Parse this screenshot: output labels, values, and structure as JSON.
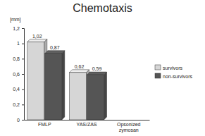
{
  "chart_data": {
    "type": "bar",
    "title": "Chemotaxis",
    "y_label": "[mm]",
    "categories": [
      "FMLP",
      "YAS/ZAS",
      "Opsonized zymosan"
    ],
    "series": [
      {
        "name": "survivors",
        "color": "#d6d6d6",
        "values": [
          1.02,
          0.62,
          null
        ],
        "value_labels": [
          "1,02",
          "0,62",
          null
        ]
      },
      {
        "name": "non-survivors",
        "color": "#555555",
        "values": [
          0.87,
          0.59,
          null
        ],
        "value_labels": [
          "0,87",
          "0,59",
          null
        ]
      }
    ],
    "ylim": [
      0,
      1.2
    ],
    "yticks": [
      0,
      {
        "value": 0.2,
        "label": "0,2"
      },
      {
        "value": 0.4,
        "label": "0,4"
      },
      {
        "value": 0.6,
        "label": "0,6"
      },
      {
        "value": 0.8,
        "label": "0,8"
      },
      1,
      {
        "value": 1.2,
        "label": "1,2"
      }
    ],
    "grid": false,
    "legend": "right",
    "data_labels": true
  }
}
